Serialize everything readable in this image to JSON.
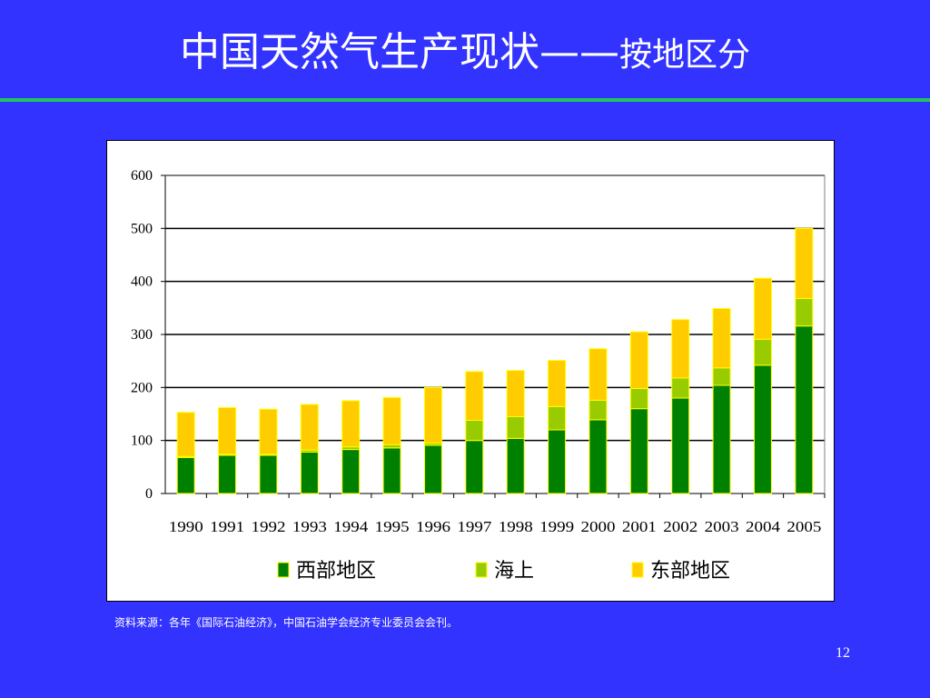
{
  "slide": {
    "title_main": "中国天然气生产现状——",
    "title_sub": "按地区分",
    "source": "资料来源：各年《国际石油经济》，中国石油学会经济专业委员会会刊。",
    "page_number": "12"
  },
  "colors": {
    "background": "#3333ff",
    "title_rule": "#22c55e",
    "west": "#008000",
    "offshore": "#99cc00",
    "east": "#ffcc00"
  },
  "chart_data": {
    "type": "bar",
    "stacked": true,
    "title": "",
    "xlabel": "",
    "ylabel": "",
    "ylim": [
      0,
      600
    ],
    "yticks": [
      0,
      100,
      200,
      300,
      400,
      500,
      600
    ],
    "grid": true,
    "legend_position": "bottom",
    "categories": [
      "1990",
      "1991",
      "1992",
      "1993",
      "1994",
      "1995",
      "1996",
      "1997",
      "1998",
      "1999",
      "2000",
      "2001",
      "2002",
      "2003",
      "2004",
      "2005"
    ],
    "series": [
      {
        "name": "西部地区",
        "color": "#008000",
        "values": [
          68,
          72,
          72,
          78,
          83,
          86,
          91,
          100,
          104,
          120,
          139,
          160,
          180,
          204,
          242,
          316
        ]
      },
      {
        "name": "海上",
        "color": "#99cc00",
        "values": [
          2,
          2,
          2,
          4,
          5,
          6,
          4,
          38,
          41,
          44,
          37,
          38,
          38,
          33,
          49,
          52
        ]
      },
      {
        "name": "东部地区",
        "color": "#ffcc00",
        "values": [
          83,
          88,
          85,
          86,
          87,
          89,
          105,
          92,
          87,
          87,
          97,
          107,
          110,
          112,
          115,
          132
        ]
      }
    ]
  }
}
